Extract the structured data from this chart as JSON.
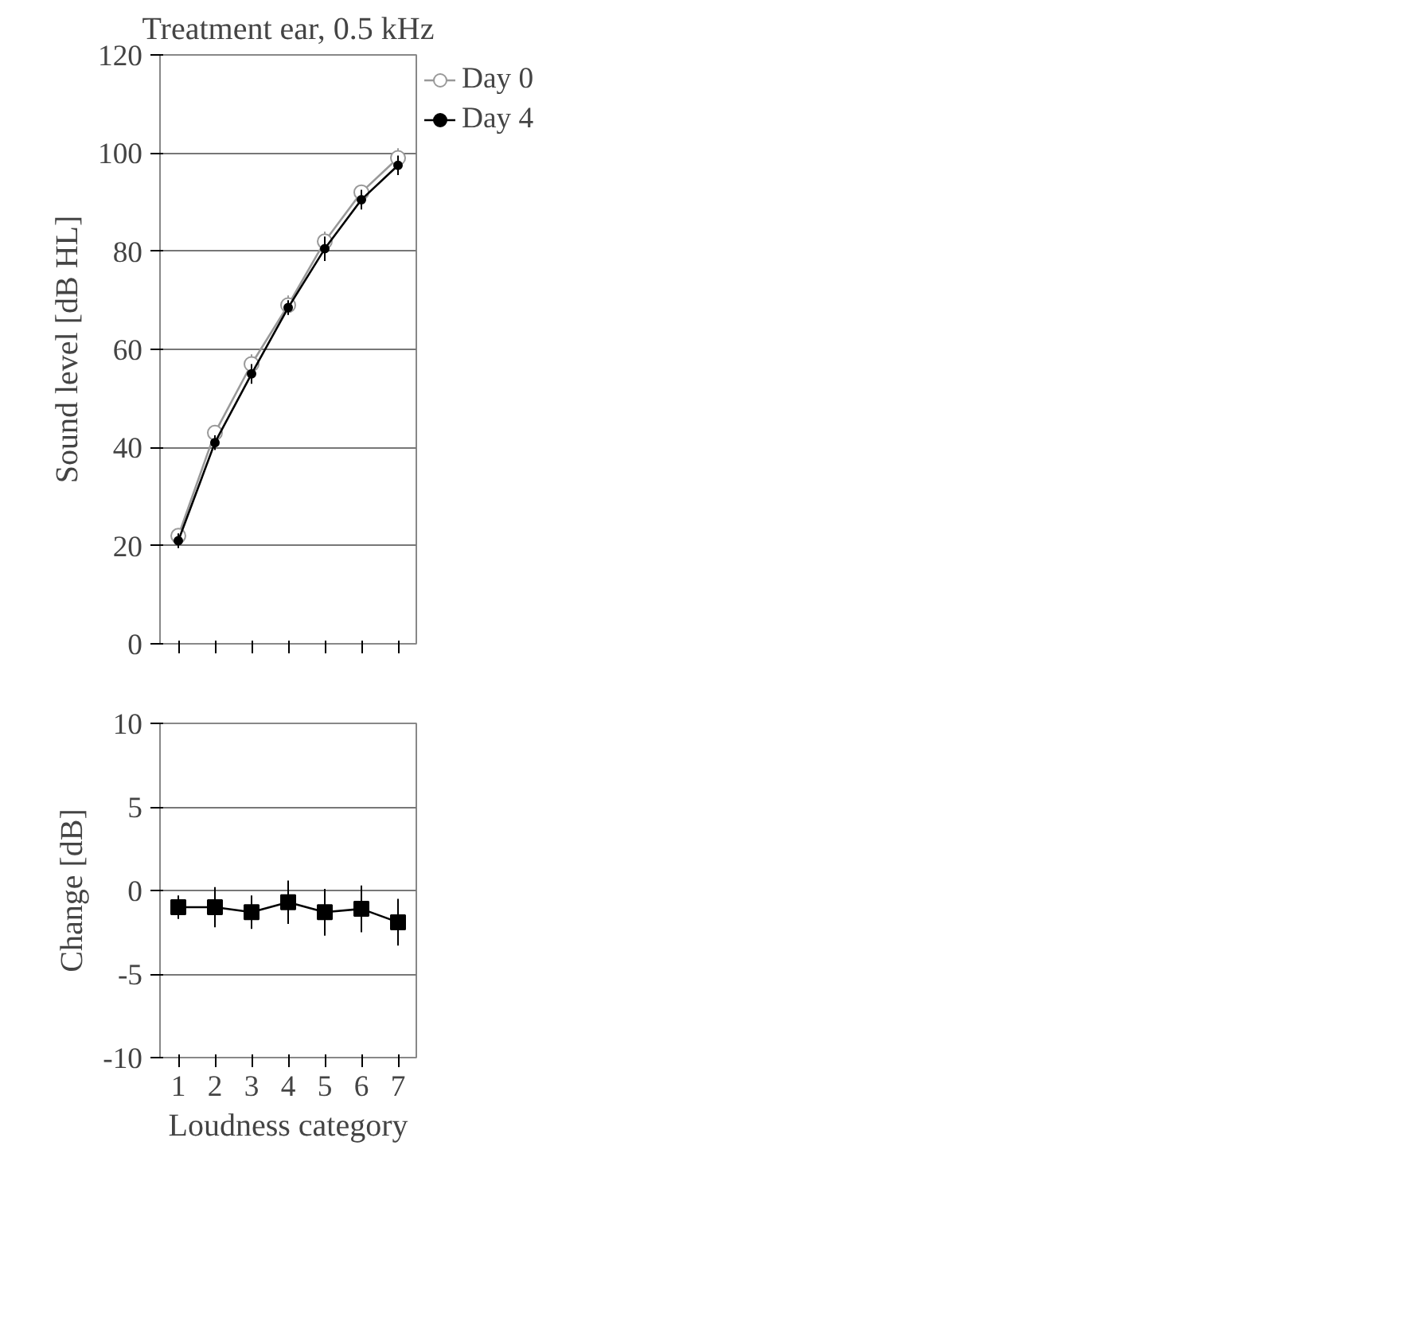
{
  "chart_data": [
    {
      "type": "line",
      "title": "Treatment ear, 0.5 kHz",
      "ylabel": "Sound level [dB HL]",
      "categories": [
        "1",
        "2",
        "3",
        "4",
        "5",
        "6",
        "7"
      ],
      "ylim": [
        0,
        120
      ],
      "yticks": [
        0,
        20,
        40,
        60,
        80,
        100,
        120
      ],
      "grid": "y",
      "legend": "right",
      "tick_labels": "y",
      "series": [
        {
          "name": "Day 0",
          "color": "#999999",
          "marker": "open_circle",
          "values": [
            22,
            43,
            57,
            69,
            82,
            92,
            99
          ],
          "errors": [
            1.5,
            1.5,
            2,
            2,
            2,
            1.5,
            2
          ]
        },
        {
          "name": "Day 4",
          "color": "#000000",
          "marker": "circle",
          "values": [
            21,
            41,
            55,
            68.5,
            80.5,
            90.5,
            97.5
          ],
          "errors": [
            1.5,
            1.5,
            2,
            1.5,
            2.5,
            2,
            2
          ]
        }
      ]
    },
    {
      "type": "line",
      "xlabel": "Loudness category",
      "ylabel": "Change [dB]",
      "categories": [
        "1",
        "2",
        "3",
        "4",
        "5",
        "6",
        "7"
      ],
      "ylim": [
        -10,
        10
      ],
      "yticks": [
        -10,
        -5,
        0,
        5,
        10
      ],
      "grid": "y",
      "series": [
        {
          "color": "#000000",
          "marker": "square",
          "values": [
            -1.0,
            -1.0,
            -1.3,
            -0.7,
            -1.3,
            -1.1,
            -1.9
          ],
          "errors": [
            0.7,
            1.2,
            1.0,
            1.3,
            1.4,
            1.4,
            1.4
          ]
        }
      ]
    }
  ]
}
